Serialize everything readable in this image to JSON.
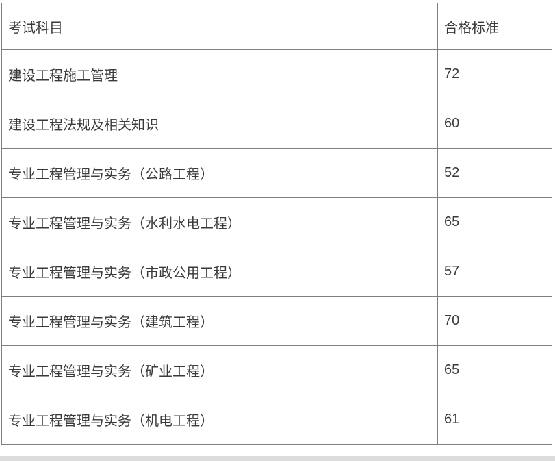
{
  "table": {
    "header": {
      "subject": "考试科目",
      "score": "合格标准"
    },
    "rows": [
      {
        "subject": "建设工程施工管理",
        "score": "72"
      },
      {
        "subject": "建设工程法规及相关知识",
        "score": "60"
      },
      {
        "subject": "专业工程管理与实务（公路工程）",
        "score": "52"
      },
      {
        "subject": "专业工程管理与实务（水利水电工程）",
        "score": "65"
      },
      {
        "subject": "专业工程管理与实务（市政公用工程）",
        "score": "57"
      },
      {
        "subject": "专业工程管理与实务（建筑工程）",
        "score": "70"
      },
      {
        "subject": "专业工程管理与实务（矿业工程）",
        "score": "65"
      },
      {
        "subject": "专业工程管理与实务（机电工程）",
        "score": "61"
      }
    ]
  },
  "colors": {
    "page_background": "#ffffff",
    "border": "#808080",
    "text": "#3a3a3a",
    "cell_background": "#ffffff",
    "bottom_strip": "#dcdcdc"
  }
}
